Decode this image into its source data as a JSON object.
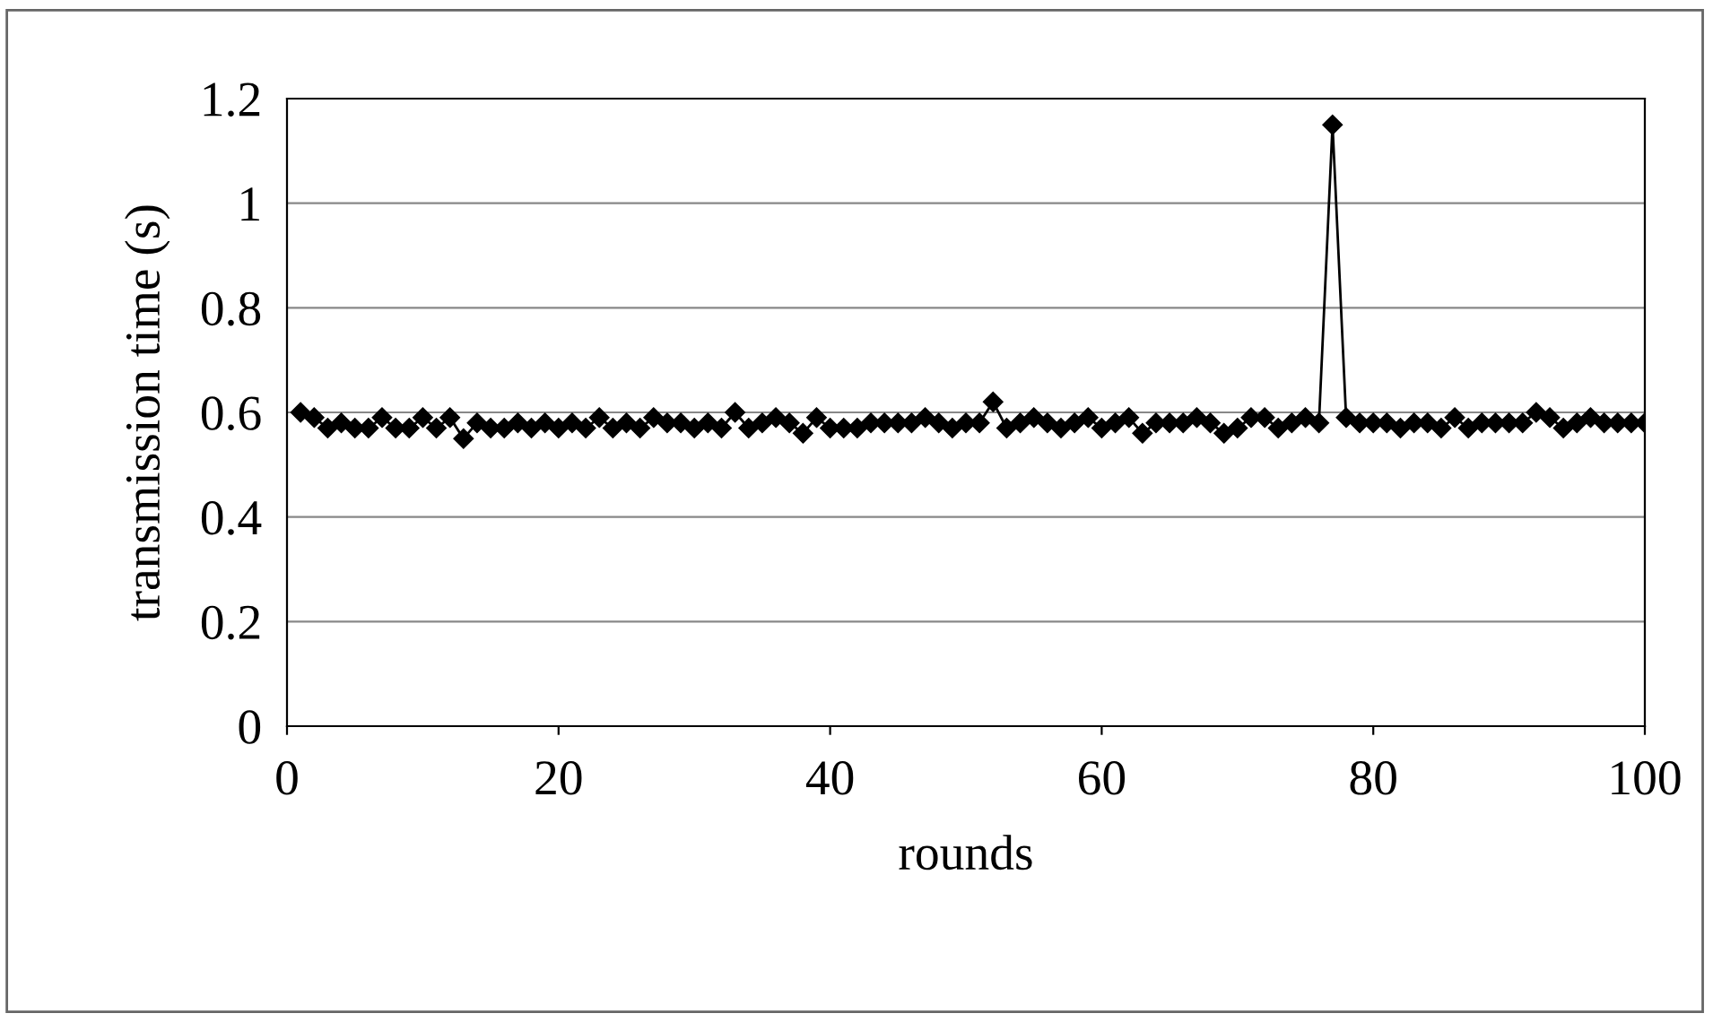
{
  "chart_data": {
    "type": "line",
    "xlabel": "rounds",
    "ylabel": "transmission time (s)",
    "x": [
      1,
      2,
      3,
      4,
      5,
      6,
      7,
      8,
      9,
      10,
      11,
      12,
      13,
      14,
      15,
      16,
      17,
      18,
      19,
      20,
      21,
      22,
      23,
      24,
      25,
      26,
      27,
      28,
      29,
      30,
      31,
      32,
      33,
      34,
      35,
      36,
      37,
      38,
      39,
      40,
      41,
      42,
      43,
      44,
      45,
      46,
      47,
      48,
      49,
      50,
      51,
      52,
      53,
      54,
      55,
      56,
      57,
      58,
      59,
      60,
      61,
      62,
      63,
      64,
      65,
      66,
      67,
      68,
      69,
      70,
      71,
      72,
      73,
      74,
      75,
      76,
      77,
      78,
      79,
      80,
      81,
      82,
      83,
      84,
      85,
      86,
      87,
      88,
      89,
      90,
      91,
      92,
      93,
      94,
      95,
      96,
      97,
      98,
      99,
      100
    ],
    "series": [
      {
        "color": "#000000",
        "values": [
          0.6,
          0.59,
          0.57,
          0.58,
          0.57,
          0.57,
          0.59,
          0.57,
          0.57,
          0.59,
          0.57,
          0.59,
          0.55,
          0.58,
          0.57,
          0.57,
          0.58,
          0.57,
          0.58,
          0.57,
          0.58,
          0.57,
          0.59,
          0.57,
          0.58,
          0.57,
          0.59,
          0.58,
          0.58,
          0.57,
          0.58,
          0.57,
          0.6,
          0.57,
          0.58,
          0.59,
          0.58,
          0.56,
          0.59,
          0.57,
          0.57,
          0.57,
          0.58,
          0.58,
          0.58,
          0.58,
          0.59,
          0.58,
          0.57,
          0.58,
          0.58,
          0.62,
          0.57,
          0.58,
          0.59,
          0.58,
          0.57,
          0.58,
          0.59,
          0.57,
          0.58,
          0.59,
          0.56,
          0.58,
          0.58,
          0.58,
          0.59,
          0.58,
          0.56,
          0.57,
          0.59,
          0.59,
          0.57,
          0.58,
          0.59,
          0.58,
          1.15,
          0.59,
          0.58,
          0.58,
          0.58,
          0.57,
          0.58,
          0.58,
          0.57,
          0.59,
          0.57,
          0.58,
          0.58,
          0.58,
          0.58,
          0.6,
          0.59,
          0.57,
          0.58,
          0.59,
          0.58,
          0.58,
          0.58,
          0.58
        ]
      }
    ],
    "xlim": [
      0,
      100
    ],
    "xticks": [
      0,
      20,
      40,
      60,
      80,
      100
    ],
    "ylim": [
      0,
      1.2
    ],
    "yticks": [
      0,
      0.2,
      0.4,
      0.6,
      0.8,
      1,
      1.2
    ],
    "grid": "y",
    "legend": false,
    "marker": "diamond",
    "line_style": "solid"
  }
}
